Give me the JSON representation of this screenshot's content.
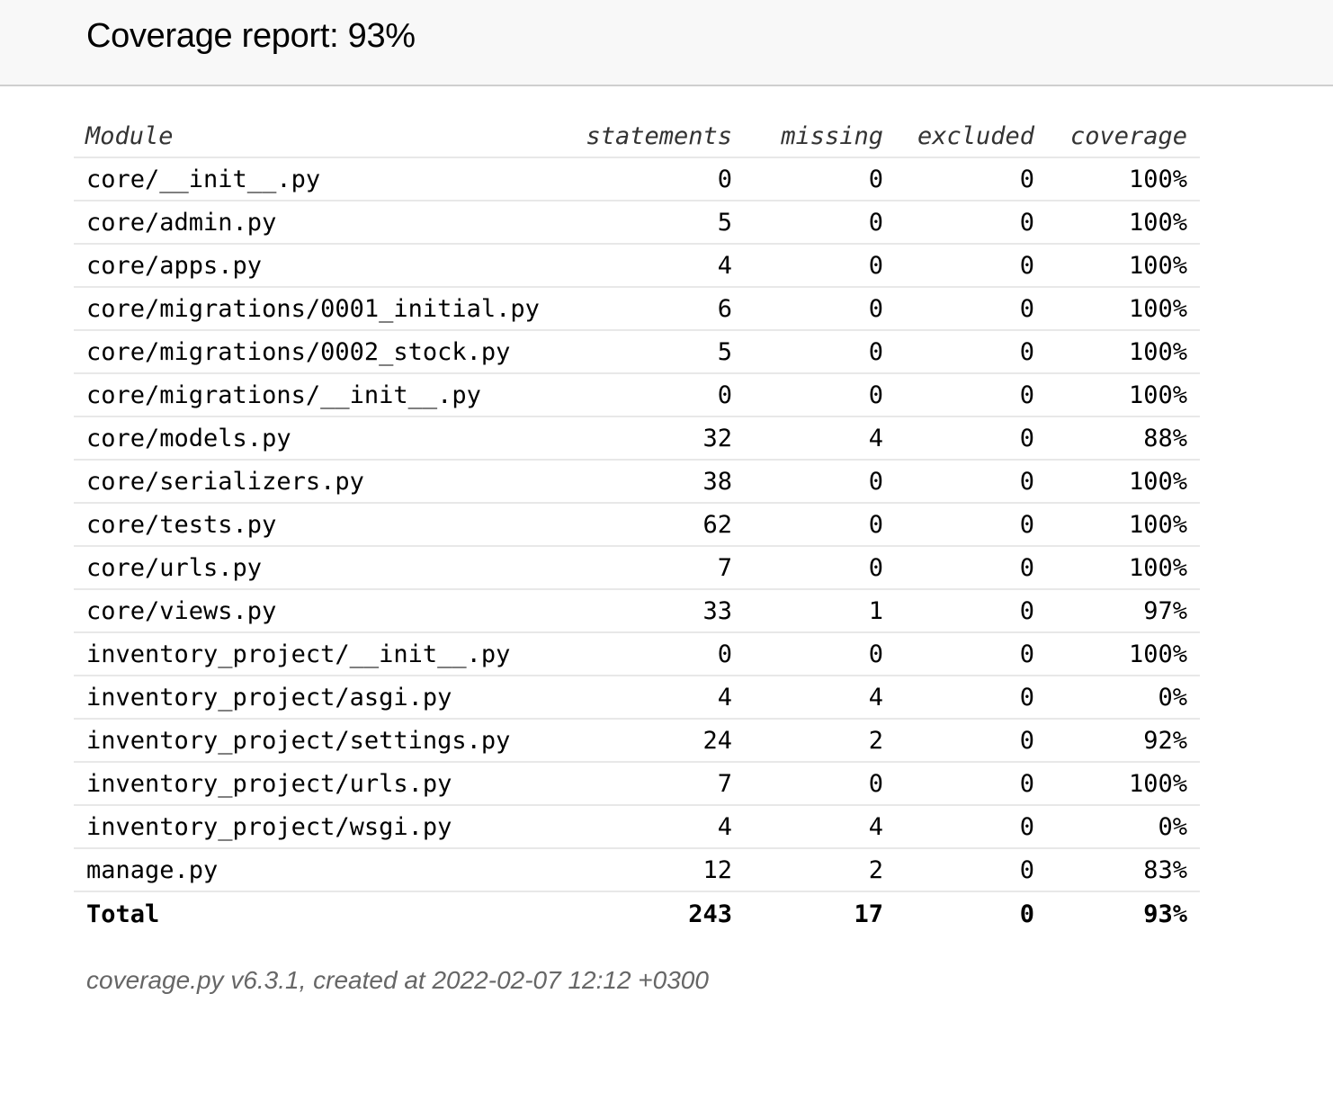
{
  "header": {
    "title": "Coverage report: 93%"
  },
  "table": {
    "columns": [
      "Module",
      "statements",
      "missing",
      "excluded",
      "coverage"
    ],
    "rows": [
      {
        "module": "core/__init__.py",
        "statements": "0",
        "missing": "0",
        "excluded": "0",
        "coverage": "100%"
      },
      {
        "module": "core/admin.py",
        "statements": "5",
        "missing": "0",
        "excluded": "0",
        "coverage": "100%"
      },
      {
        "module": "core/apps.py",
        "statements": "4",
        "missing": "0",
        "excluded": "0",
        "coverage": "100%"
      },
      {
        "module": "core/migrations/0001_initial.py",
        "statements": "6",
        "missing": "0",
        "excluded": "0",
        "coverage": "100%"
      },
      {
        "module": "core/migrations/0002_stock.py",
        "statements": "5",
        "missing": "0",
        "excluded": "0",
        "coverage": "100%"
      },
      {
        "module": "core/migrations/__init__.py",
        "statements": "0",
        "missing": "0",
        "excluded": "0",
        "coverage": "100%"
      },
      {
        "module": "core/models.py",
        "statements": "32",
        "missing": "4",
        "excluded": "0",
        "coverage": "88%"
      },
      {
        "module": "core/serializers.py",
        "statements": "38",
        "missing": "0",
        "excluded": "0",
        "coverage": "100%"
      },
      {
        "module": "core/tests.py",
        "statements": "62",
        "missing": "0",
        "excluded": "0",
        "coverage": "100%"
      },
      {
        "module": "core/urls.py",
        "statements": "7",
        "missing": "0",
        "excluded": "0",
        "coverage": "100%"
      },
      {
        "module": "core/views.py",
        "statements": "33",
        "missing": "1",
        "excluded": "0",
        "coverage": "97%"
      },
      {
        "module": "inventory_project/__init__.py",
        "statements": "0",
        "missing": "0",
        "excluded": "0",
        "coverage": "100%"
      },
      {
        "module": "inventory_project/asgi.py",
        "statements": "4",
        "missing": "4",
        "excluded": "0",
        "coverage": "0%"
      },
      {
        "module": "inventory_project/settings.py",
        "statements": "24",
        "missing": "2",
        "excluded": "0",
        "coverage": "92%"
      },
      {
        "module": "inventory_project/urls.py",
        "statements": "7",
        "missing": "0",
        "excluded": "0",
        "coverage": "100%"
      },
      {
        "module": "inventory_project/wsgi.py",
        "statements": "4",
        "missing": "4",
        "excluded": "0",
        "coverage": "0%"
      },
      {
        "module": "manage.py",
        "statements": "12",
        "missing": "2",
        "excluded": "0",
        "coverage": "83%"
      }
    ],
    "total": {
      "module": "Total",
      "statements": "243",
      "missing": "17",
      "excluded": "0",
      "coverage": "93%"
    }
  },
  "footer": {
    "text": "coverage.py v6.3.1, created at 2022-02-07 12:12 +0300"
  }
}
